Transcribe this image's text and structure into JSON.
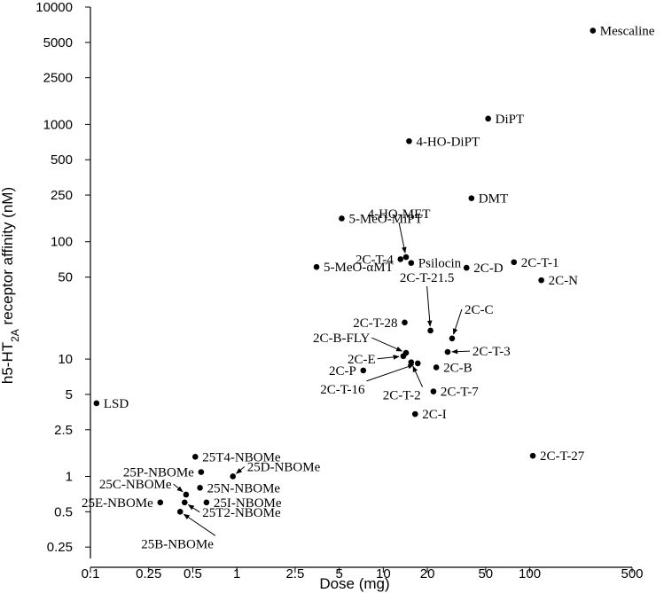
{
  "chart_data": {
    "type": "scatter",
    "xlabel": "Dose (mg)",
    "ylabel_parts": [
      "h5-HT",
      "2A",
      " receptor affinity (nM)"
    ],
    "x_scale": "log",
    "y_scale": "log",
    "xlim": [
      0.1,
      500
    ],
    "ylim": [
      0.2,
      10000
    ],
    "x_ticks": [
      {
        "v": 0.1,
        "label": "0.1"
      },
      {
        "v": 0.25,
        "label": "0.25"
      },
      {
        "v": 0.5,
        "label": "0.5"
      },
      {
        "v": 1,
        "label": "1"
      },
      {
        "v": 2.5,
        "label": "2.5"
      },
      {
        "v": 5,
        "label": "5"
      },
      {
        "v": 10,
        "label": "10"
      },
      {
        "v": 20,
        "label": "20"
      },
      {
        "v": 50,
        "label": "50"
      },
      {
        "v": 100,
        "label": "100"
      },
      {
        "v": 500,
        "label": "500"
      }
    ],
    "y_ticks": [
      {
        "v": 0.25,
        "label": "0.25"
      },
      {
        "v": 0.5,
        "label": "0.5"
      },
      {
        "v": 1,
        "label": "1"
      },
      {
        "v": 2.5,
        "label": "2.5"
      },
      {
        "v": 5,
        "label": "5"
      },
      {
        "v": 10,
        "label": "10"
      },
      {
        "v": 50,
        "label": "50"
      },
      {
        "v": 100,
        "label": "100"
      },
      {
        "v": 250,
        "label": "250"
      },
      {
        "v": 500,
        "label": "500"
      },
      {
        "v": 1000,
        "label": "1000"
      },
      {
        "v": 2500,
        "label": "2500"
      },
      {
        "v": 5000,
        "label": "5000"
      },
      {
        "v": 10000,
        "label": "10000"
      }
    ],
    "points": [
      {
        "name": "Mescaline",
        "x": 270,
        "y": 6300,
        "label": {
          "pos": "right"
        }
      },
      {
        "name": "DiPT",
        "x": 52,
        "y": 1120,
        "label": {
          "pos": "right"
        }
      },
      {
        "name": "4-HO-DiPT",
        "x": 15,
        "y": 720,
        "label": {
          "pos": "right"
        }
      },
      {
        "name": "DMT",
        "x": 40,
        "y": 235,
        "label": {
          "pos": "right"
        }
      },
      {
        "name": "5-MeO-MiPT",
        "x": 5.2,
        "y": 158,
        "label": {
          "pos": "right"
        }
      },
      {
        "name": "4-HO-MET",
        "x": 14.3,
        "y": 74,
        "label": {
          "pos": "arrow",
          "dx": -8,
          "dy": -44,
          "anchor": "middle"
        }
      },
      {
        "name": "2C-T-4",
        "x": 13.1,
        "y": 71,
        "label": {
          "pos": "left"
        }
      },
      {
        "name": "Psilocin",
        "x": 15.5,
        "y": 66,
        "label": {
          "pos": "right"
        }
      },
      {
        "name": "2C-T-1",
        "x": 78,
        "y": 67,
        "label": {
          "pos": "right"
        }
      },
      {
        "name": "5-MeO-αMT",
        "x": 3.5,
        "y": 61,
        "label": {
          "pos": "right"
        }
      },
      {
        "name": "2C-D",
        "x": 37,
        "y": 60,
        "label": {
          "pos": "right"
        }
      },
      {
        "name": "2C-N",
        "x": 120,
        "y": 47,
        "label": {
          "pos": "right"
        }
      },
      {
        "name": "2C-T-21.5",
        "x": 21,
        "y": 17.5,
        "label": {
          "pos": "arrow",
          "dx": -4,
          "dy": -55,
          "anchor": "middle"
        }
      },
      {
        "name": "2C-T-28",
        "x": 14,
        "y": 20.5,
        "label": {
          "pos": "left"
        }
      },
      {
        "name": "2C-C",
        "x": 29.5,
        "y": 15,
        "label": {
          "pos": "arrow",
          "dx": 14,
          "dy": -28,
          "anchor": "start"
        }
      },
      {
        "name": "2C-T-3",
        "x": 27.5,
        "y": 11.5,
        "label": {
          "pos": "arrow",
          "dx": 28,
          "dy": 4,
          "anchor": "start"
        }
      },
      {
        "name": "2C-B-FLY",
        "x": 14.3,
        "y": 11.3,
        "label": {
          "pos": "arrow",
          "dx": -105,
          "dy": -12,
          "anchor": "start"
        }
      },
      {
        "name": "2C-E",
        "x": 13.7,
        "y": 10.6,
        "label": {
          "pos": "arrow",
          "dx": -63,
          "dy": 8,
          "anchor": "start"
        }
      },
      {
        "name": "2C-P",
        "x": 7.3,
        "y": 8,
        "label": {
          "pos": "left"
        }
      },
      {
        "name": "2C-B",
        "x": 23,
        "y": 8.5,
        "label": {
          "pos": "right"
        }
      },
      {
        "name": "2C-T-16",
        "x": 17.2,
        "y": 9.2,
        "label": {
          "pos": "arrow",
          "dx": -110,
          "dy": 34,
          "anchor": "start"
        }
      },
      {
        "name": "2C-T-2",
        "x": 15.5,
        "y": 9.4,
        "label": {
          "pos": "arrow",
          "dx": -32,
          "dy": 42,
          "anchor": "start"
        }
      },
      {
        "name": "2C-T-7",
        "x": 22,
        "y": 5.3,
        "label": {
          "pos": "right"
        }
      },
      {
        "name": "LSD",
        "x": 0.11,
        "y": 4.2,
        "label": {
          "pos": "right"
        }
      },
      {
        "name": "2C-I",
        "x": 16.5,
        "y": 3.4,
        "label": {
          "pos": "right"
        }
      },
      {
        "name": "2C-T-27",
        "x": 105,
        "y": 1.5,
        "label": {
          "pos": "right"
        }
      },
      {
        "name": "25T4-NBOMe",
        "x": 0.52,
        "y": 1.47,
        "label": {
          "pos": "right"
        }
      },
      {
        "name": "25P-NBOMe",
        "x": 0.57,
        "y": 1.09,
        "label": {
          "pos": "left"
        }
      },
      {
        "name": "25D-NBOMe",
        "x": 0.94,
        "y": 1.0,
        "label": {
          "pos": "arrow",
          "dx": 16,
          "dy": -6,
          "anchor": "start"
        }
      },
      {
        "name": "25C-NBOMe",
        "x": 0.45,
        "y": 0.7,
        "label": {
          "pos": "arrow",
          "dx": -98,
          "dy": -7,
          "anchor": "start"
        }
      },
      {
        "name": "25N-NBOMe",
        "x": 0.56,
        "y": 0.8,
        "label": {
          "pos": "right"
        }
      },
      {
        "name": "25E-NBOMe",
        "x": 0.3,
        "y": 0.6,
        "label": {
          "pos": "left"
        }
      },
      {
        "name": "25I-NBOMe",
        "x": 0.62,
        "y": 0.6,
        "label": {
          "pos": "right"
        }
      },
      {
        "name": "25T2-NBOMe",
        "x": 0.44,
        "y": 0.6,
        "label": {
          "pos": "arrow",
          "dx": 20,
          "dy": 16,
          "anchor": "start"
        }
      },
      {
        "name": "25B-NBOMe",
        "x": 0.41,
        "y": 0.5,
        "label": {
          "pos": "arrow",
          "dx": -44,
          "dy": 41,
          "anchor": "start"
        }
      }
    ]
  }
}
